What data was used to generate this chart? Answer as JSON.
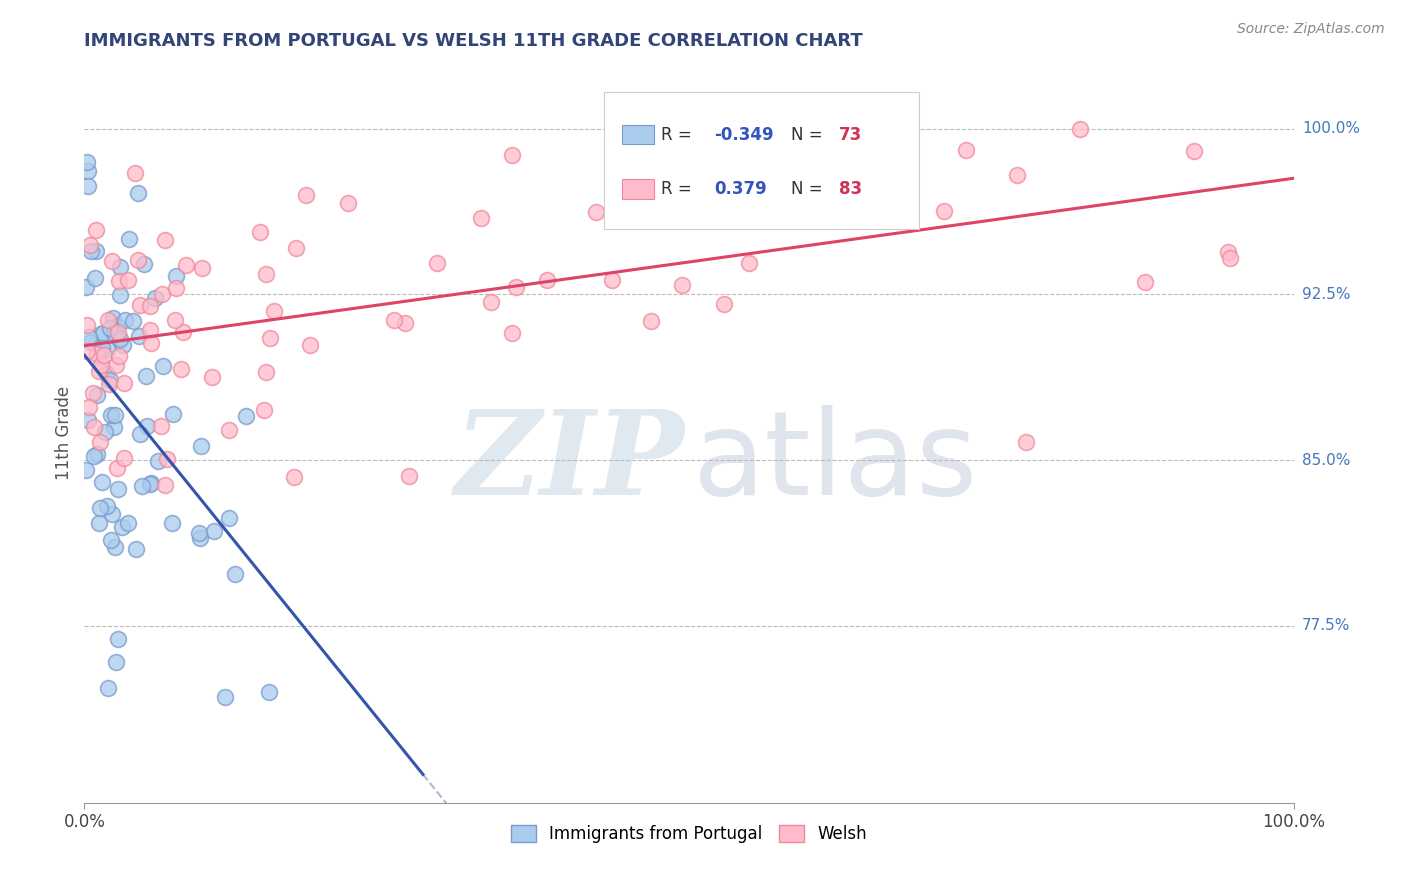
{
  "title": "IMMIGRANTS FROM PORTUGAL VS WELSH 11TH GRADE CORRELATION CHART",
  "source_text": "Source: ZipAtlas.com",
  "ylabel": "11th Grade",
  "yaxis_labels": [
    "100.0%",
    "92.5%",
    "85.0%",
    "77.5%"
  ],
  "yaxis_values": [
    1.0,
    0.925,
    0.85,
    0.775
  ],
  "legend1_r": "-0.349",
  "legend1_n": "73",
  "legend2_r": "0.379",
  "legend2_n": "83",
  "blue_fill": "#AACCEE",
  "blue_edge": "#7799CC",
  "pink_fill": "#FFBBCC",
  "pink_edge": "#EE8899",
  "title_color": "#334477",
  "r_value_color": "#3355BB",
  "n_value_color": "#CC3355",
  "xlim": [
    0.0,
    1.0
  ],
  "ylim": [
    0.695,
    1.03
  ]
}
